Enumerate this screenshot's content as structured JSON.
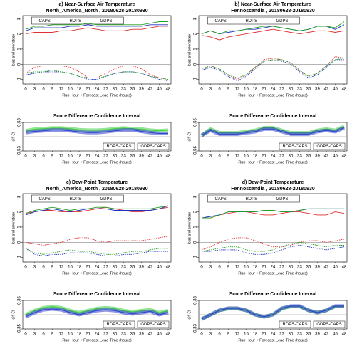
{
  "chart_data": [
    {
      "type": "line",
      "title": "a) Near-Surface Air Temperature",
      "subtitle": "North_America_North , 20180628-20180930",
      "ylabel": "bias and error stdev",
      "xlabel": "Run Hour + Forecast Lead Time (hours)",
      "categories": [
        "0",
        "3",
        "6",
        "9",
        "12",
        "15",
        "18",
        "21",
        "24",
        "27",
        "30",
        "33",
        "36",
        "39",
        "42",
        "45",
        "48"
      ],
      "ylim": [
        -1.3,
        3.2
      ],
      "yticks": [
        -1,
        0,
        1,
        2,
        3
      ],
      "series": [
        {
          "name": "CAPS",
          "color": "#e03030",
          "stdev": [
            2.0,
            2.1,
            2.1,
            2.1,
            2.2,
            2.2,
            2.3,
            2.4,
            2.3,
            2.2,
            2.2,
            2.2,
            2.3,
            2.3,
            2.4,
            2.5,
            2.5
          ],
          "bias": [
            -0.6,
            -0.2,
            -0.1,
            -0.1,
            -0.1,
            -0.2,
            -0.5,
            -0.9,
            -0.9,
            -0.6,
            -0.3,
            -0.1,
            -0.1,
            -0.3,
            -0.7,
            -0.9,
            -1.0
          ]
        },
        {
          "name": "RDPS",
          "color": "#2030c0",
          "stdev": [
            2.2,
            2.4,
            2.4,
            2.4,
            2.4,
            2.5,
            2.5,
            2.6,
            2.5,
            2.5,
            2.5,
            2.5,
            2.5,
            2.5,
            2.6,
            2.6,
            2.6
          ],
          "bias": [
            -0.7,
            -0.6,
            -0.5,
            -0.5,
            -0.5,
            -0.6,
            -0.8,
            -1.0,
            -1.0,
            -0.8,
            -0.6,
            -0.5,
            -0.5,
            -0.6,
            -0.8,
            -1.0,
            -1.1
          ]
        },
        {
          "name": "GDPS",
          "color": "#20a020",
          "stdev": [
            2.3,
            2.5,
            2.5,
            2.6,
            2.6,
            2.6,
            2.6,
            2.7,
            2.6,
            2.6,
            2.6,
            2.6,
            2.6,
            2.6,
            2.7,
            2.8,
            2.8
          ],
          "bias": [
            -0.6,
            -0.5,
            -0.5,
            -0.4,
            -0.5,
            -0.6,
            -0.8,
            -0.9,
            -0.9,
            -0.8,
            -0.6,
            -0.5,
            -0.5,
            -0.6,
            -0.8,
            -0.9,
            -1.0
          ]
        }
      ]
    },
    {
      "type": "band",
      "title": "Score Difference Confidence Interval",
      "ylabel": "diff CI",
      "xlabel": "Run Hour + Forecast Lead Time (hours)",
      "categories": [
        "0",
        "3",
        "6",
        "9",
        "12",
        "15",
        "18",
        "21",
        "24",
        "27",
        "30",
        "33",
        "36",
        "39",
        "42",
        "45",
        "48"
      ],
      "ylim": [
        -0.53,
        0.53
      ],
      "yticks": [
        -0.53,
        0.53
      ],
      "series": [
        {
          "name": "RDPS-CAPS",
          "color": "#3040d0",
          "values": [
            0.15,
            0.2,
            0.22,
            0.25,
            0.25,
            0.22,
            0.18,
            0.15,
            0.15,
            0.18,
            0.22,
            0.25,
            0.25,
            0.2,
            0.15,
            0.12,
            0.12
          ]
        },
        {
          "name": "GDPS-CAPS",
          "color": "#40d040",
          "values": [
            0.22,
            0.28,
            0.3,
            0.32,
            0.32,
            0.3,
            0.26,
            0.24,
            0.24,
            0.26,
            0.3,
            0.32,
            0.3,
            0.28,
            0.24,
            0.22,
            0.24
          ]
        }
      ]
    },
    {
      "type": "line",
      "title": "b) Near-Surface Air Temperature",
      "subtitle": "Fennoscandia , 20180628-20180930",
      "ylabel": "bias and error stdev",
      "xlabel": "Run Hour + Forecast Lead Time (hours)",
      "categories": [
        "0",
        "3",
        "6",
        "9",
        "12",
        "15",
        "18",
        "21",
        "24",
        "27",
        "30",
        "33",
        "36",
        "39",
        "42",
        "45",
        "48"
      ],
      "ylim": [
        -1.3,
        3.2
      ],
      "yticks": [
        -1,
        0,
        1,
        2,
        3
      ],
      "series": [
        {
          "name": "CAPS",
          "color": "#e03030",
          "stdev": [
            1.9,
            1.8,
            1.6,
            1.8,
            1.9,
            2.0,
            2.1,
            2.2,
            2.3,
            2.2,
            2.1,
            2.0,
            2.1,
            2.2,
            2.2,
            2.1,
            2.2
          ],
          "bias": [
            -0.3,
            -0.1,
            -0.3,
            -0.7,
            -1.0,
            -0.7,
            -0.2,
            0.3,
            0.4,
            0.3,
            0.1,
            -0.4,
            -0.8,
            -0.6,
            -0.1,
            0.5,
            0.4
          ]
        },
        {
          "name": "RDPS",
          "color": "#2030c0",
          "stdev": [
            2.0,
            2.2,
            2.0,
            2.1,
            2.2,
            2.3,
            2.3,
            2.4,
            2.5,
            2.4,
            2.3,
            2.2,
            2.3,
            2.5,
            2.5,
            2.3,
            2.6
          ],
          "bias": [
            -0.4,
            -0.2,
            -0.4,
            -0.8,
            -1.1,
            -0.8,
            -0.3,
            0.2,
            0.3,
            0.2,
            0.0,
            -0.5,
            -0.9,
            -0.7,
            -0.2,
            0.3,
            0.3
          ]
        },
        {
          "name": "GDPS",
          "color": "#20a020",
          "stdev": [
            2.0,
            2.2,
            2.0,
            2.2,
            2.2,
            2.3,
            2.4,
            2.5,
            2.5,
            2.4,
            2.3,
            2.2,
            2.3,
            2.5,
            2.5,
            2.4,
            2.8
          ],
          "bias": [
            -0.3,
            -0.1,
            -0.3,
            -0.7,
            -0.9,
            -0.7,
            -0.2,
            0.2,
            0.3,
            0.3,
            0.1,
            -0.4,
            -0.8,
            -0.6,
            -0.1,
            0.3,
            0.4
          ]
        }
      ]
    },
    {
      "type": "band",
      "title": "Score Difference Confidence Interval",
      "ylabel": "diff CI",
      "xlabel": "Run Hour + Forecast Lead Time (hours)",
      "categories": [
        "0",
        "3",
        "6",
        "9",
        "12",
        "15",
        "18",
        "21",
        "24",
        "27",
        "30",
        "33",
        "36",
        "39",
        "42",
        "45",
        "48"
      ],
      "ylim": [
        -0.56,
        0.56
      ],
      "yticks": [
        -0.56,
        0.56
      ],
      "series": [
        {
          "name": "RDPS-CAPS",
          "color": "#3040d0",
          "values": [
            0.05,
            0.25,
            0.1,
            0.1,
            0.1,
            0.15,
            0.2,
            0.3,
            0.3,
            0.2,
            0.1,
            0.1,
            0.1,
            0.2,
            0.25,
            0.2,
            0.35
          ]
        },
        {
          "name": "GDPS-CAPS",
          "color": "#40d040",
          "values": [
            0.05,
            0.3,
            0.15,
            0.15,
            0.15,
            0.2,
            0.25,
            0.35,
            0.35,
            0.25,
            0.15,
            0.15,
            0.15,
            0.25,
            0.3,
            0.25,
            0.4
          ]
        }
      ]
    },
    {
      "type": "line",
      "title": "c) Dew-Point Temperature",
      "subtitle": "North_America_North , 20180628-20180930",
      "ylabel": "bias and error stdev",
      "xlabel": "Run Hour + Forecast Lead Time (hours)",
      "categories": [
        "0",
        "3",
        "6",
        "9",
        "12",
        "15",
        "18",
        "21",
        "24",
        "27",
        "30",
        "33",
        "36",
        "39",
        "42",
        "45",
        "48"
      ],
      "ylim": [
        -1.3,
        3.2
      ],
      "yticks": [
        -1,
        0,
        1,
        2,
        3
      ],
      "series": [
        {
          "name": "CAPS",
          "color": "#e03030",
          "stdev": [
            1.9,
            2.0,
            2.1,
            2.1,
            2.0,
            2.0,
            2.0,
            2.1,
            2.2,
            2.3,
            2.2,
            2.1,
            2.0,
            2.0,
            2.1,
            2.2,
            2.3
          ],
          "bias": [
            0.0,
            -0.1,
            -0.2,
            -0.1,
            0.0,
            0.2,
            0.3,
            0.3,
            0.1,
            0.0,
            0.1,
            0.1,
            0.1,
            0.1,
            0.2,
            0.3,
            0.4
          ]
        },
        {
          "name": "RDPS",
          "color": "#2030c0",
          "stdev": [
            1.8,
            2.0,
            2.1,
            2.2,
            2.1,
            2.0,
            2.1,
            2.2,
            2.2,
            2.2,
            2.1,
            2.1,
            2.1,
            2.1,
            2.1,
            2.2,
            2.4
          ],
          "bias": [
            -0.4,
            -0.8,
            -0.9,
            -0.8,
            -0.8,
            -0.7,
            -0.7,
            -0.7,
            -0.8,
            -0.9,
            -0.9,
            -0.8,
            -0.8,
            -0.7,
            -0.6,
            -0.6,
            -0.6
          ]
        },
        {
          "name": "GDPS",
          "color": "#20a020",
          "stdev": [
            1.9,
            2.1,
            2.2,
            2.3,
            2.2,
            2.1,
            2.2,
            2.2,
            2.3,
            2.3,
            2.2,
            2.2,
            2.2,
            2.2,
            2.2,
            2.3,
            2.4
          ],
          "bias": [
            -0.4,
            -0.7,
            -0.8,
            -0.7,
            -0.6,
            -0.5,
            -0.6,
            -0.6,
            -0.7,
            -0.8,
            -0.8,
            -0.7,
            -0.6,
            -0.6,
            -0.5,
            -0.4,
            -0.4
          ]
        }
      ]
    },
    {
      "type": "band",
      "title": "Score Difference Confidence Interval",
      "ylabel": "diff CI",
      "xlabel": "Run Hour + Forecast Lead Time (hours)",
      "categories": [
        "0",
        "3",
        "6",
        "9",
        "12",
        "15",
        "18",
        "21",
        "24",
        "27",
        "30",
        "33",
        "36",
        "39",
        "42",
        "45",
        "48"
      ],
      "ylim": [
        -0.35,
        0.35
      ],
      "yticks": [
        -0.35,
        0.35
      ],
      "series": [
        {
          "name": "RDPS-CAPS",
          "color": "#3040d0",
          "values": [
            -0.05,
            0.05,
            0.12,
            0.14,
            0.12,
            0.05,
            0.0,
            0.05,
            0.1,
            0.12,
            0.1,
            0.05,
            0.02,
            0.05,
            0.08,
            0.0,
            0.05
          ]
        },
        {
          "name": "GDPS-CAPS",
          "color": "#40d040",
          "values": [
            0.0,
            0.1,
            0.17,
            0.2,
            0.17,
            0.1,
            0.05,
            0.1,
            0.15,
            0.17,
            0.15,
            0.1,
            0.07,
            0.1,
            0.12,
            0.05,
            0.1
          ]
        }
      ]
    },
    {
      "type": "line",
      "title": "d) Dew-Point Temperature",
      "subtitle": "Fennoscandia , 20180628-20180930",
      "ylabel": "bias and error stdev",
      "xlabel": "Run Hour + Forecast Lead Time (hours)",
      "categories": [
        "0",
        "3",
        "6",
        "9",
        "12",
        "15",
        "18",
        "21",
        "24",
        "27",
        "30",
        "33",
        "36",
        "39",
        "42",
        "45",
        "48"
      ],
      "ylim": [
        -1.3,
        3.2
      ],
      "yticks": [
        -1,
        0,
        1,
        2,
        3
      ],
      "series": [
        {
          "name": "CAPS",
          "color": "#e03030",
          "stdev": [
            1.6,
            1.6,
            1.8,
            1.9,
            2.0,
            2.0,
            1.9,
            1.8,
            1.8,
            1.9,
            2.0,
            2.0,
            1.9,
            1.8,
            1.8,
            2.0,
            1.9
          ],
          "bias": [
            -0.5,
            -0.3,
            0.0,
            0.2,
            0.3,
            0.3,
            0.1,
            -0.1,
            -0.3,
            -0.3,
            -0.2,
            0.0,
            0.1,
            0.1,
            0.0,
            0.1,
            0.2
          ]
        },
        {
          "name": "RDPS",
          "color": "#2030c0",
          "stdev": [
            1.6,
            1.7,
            1.8,
            2.0,
            2.0,
            2.0,
            2.0,
            2.1,
            2.1,
            2.0,
            2.0,
            2.1,
            2.2,
            2.2,
            2.2,
            2.2,
            2.2
          ],
          "bias": [
            -0.6,
            -0.6,
            -0.5,
            -0.5,
            -0.5,
            -0.7,
            -0.8,
            -0.8,
            -0.7,
            -0.5,
            -0.3,
            -0.2,
            -0.3,
            -0.4,
            -0.5,
            -0.4,
            -0.3
          ]
        },
        {
          "name": "GDPS",
          "color": "#20a020",
          "stdev": [
            1.6,
            1.6,
            1.8,
            2.0,
            2.0,
            2.0,
            2.0,
            2.1,
            2.1,
            2.0,
            2.0,
            2.1,
            2.2,
            2.2,
            2.2,
            2.2,
            2.2
          ],
          "bias": [
            -0.6,
            -0.5,
            -0.4,
            -0.3,
            -0.3,
            -0.5,
            -0.6,
            -0.6,
            -0.5,
            -0.3,
            -0.1,
            0.0,
            -0.1,
            -0.2,
            -0.3,
            -0.2,
            -0.2
          ]
        }
      ]
    },
    {
      "type": "band",
      "title": "Score Difference Confidence Interval",
      "ylabel": "diff CI",
      "xlabel": "Run Hour + Forecast Lead Time (hours)",
      "categories": [
        "0",
        "3",
        "6",
        "9",
        "12",
        "15",
        "18",
        "21",
        "24",
        "27",
        "30",
        "33",
        "36",
        "39",
        "42",
        "45",
        "48"
      ],
      "ylim": [
        -0.33,
        0.33
      ],
      "yticks": [
        -0.33,
        0.33
      ],
      "series": [
        {
          "name": "RDPS-CAPS",
          "color": "#3040d0",
          "values": [
            -0.1,
            0.0,
            0.1,
            0.15,
            0.15,
            0.1,
            0.0,
            -0.05,
            0.0,
            0.15,
            0.2,
            0.2,
            0.1,
            0.05,
            0.1,
            0.2,
            0.2
          ]
        },
        {
          "name": "GDPS-CAPS",
          "color": "#40d040",
          "values": [
            -0.1,
            0.0,
            0.1,
            0.14,
            0.14,
            0.1,
            0.0,
            -0.05,
            0.0,
            0.14,
            0.19,
            0.19,
            0.1,
            0.05,
            0.1,
            0.19,
            0.19
          ]
        }
      ]
    }
  ]
}
